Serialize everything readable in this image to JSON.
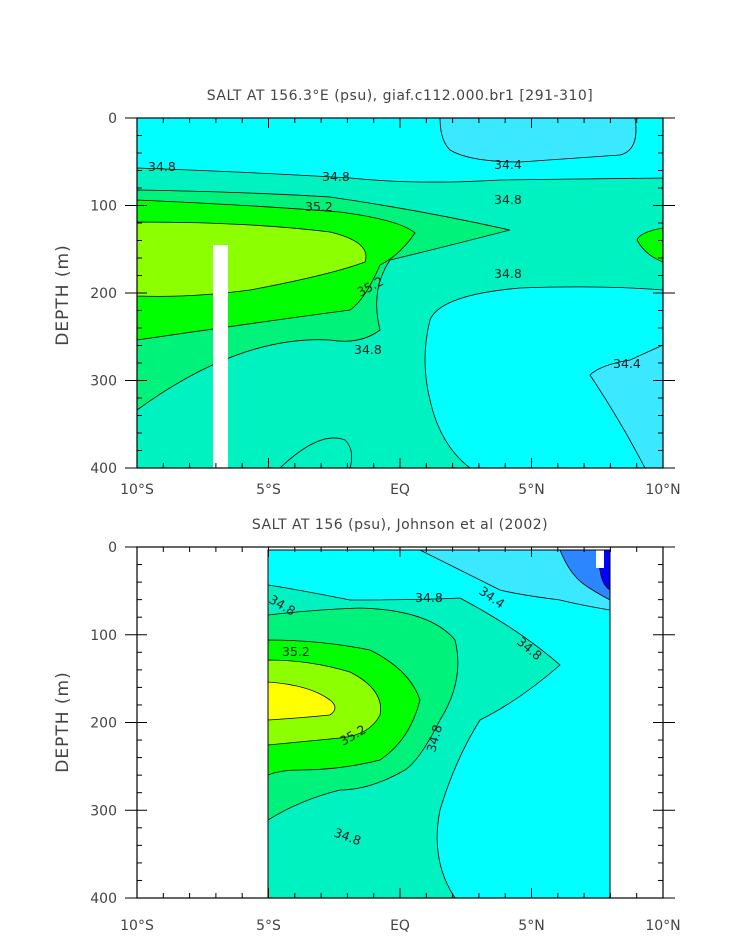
{
  "chart_data": [
    {
      "type": "contour",
      "title": "SALT AT 156.3°E (psu), giaf.c112.000.br1 [291-310]",
      "ylabel": "DEPTH (m)",
      "x_ticks": [
        "10°S",
        "5°S",
        "EQ",
        "5°N",
        "10°N"
      ],
      "y_ticks": [
        "0",
        "100",
        "200",
        "300",
        "400"
      ],
      "xlim": [
        -10,
        10
      ],
      "ylim": [
        400,
        0
      ],
      "x_unit": "degrees latitude",
      "y_unit": "m",
      "contour_labels": [
        "34.8",
        "34.8",
        "34.4",
        "34.8",
        "35.2",
        "35.2",
        "34.8",
        "34.8",
        "34.4"
      ],
      "data_range_lat": [
        -10,
        10
      ],
      "masked_column_lat": [
        -3.1,
        -2.6
      ],
      "masked_column_depth": [
        145,
        400
      ]
    },
    {
      "type": "contour",
      "title": "SALT AT 156 (psu), Johnson et al (2002)",
      "ylabel": "DEPTH (m)",
      "x_ticks": [
        "10°S",
        "5°S",
        "EQ",
        "5°N",
        "10°N"
      ],
      "y_ticks": [
        "0",
        "100",
        "200",
        "300",
        "400"
      ],
      "xlim": [
        -10,
        10
      ],
      "ylim": [
        400,
        0
      ],
      "x_unit": "degrees latitude",
      "y_unit": "m",
      "contour_labels": [
        "34.8",
        "34.8",
        "34.4",
        "34.8",
        "35.2",
        "35.2",
        "34.8",
        "34.8"
      ],
      "data_range_lat": [
        -5,
        8
      ]
    }
  ],
  "colors": {
    "fill_34_2": "#2c86ff",
    "fill_34_4": "#3ae8ff",
    "fill_34_6": "#00ffff",
    "fill_34_8": "#00f2c0",
    "fill_35_0": "#00f27a",
    "fill_35_2": "#00ff00",
    "fill_35_4": "#8cff00",
    "fill_35_6": "#ffff00",
    "fill_34_0": "#0000ff"
  }
}
